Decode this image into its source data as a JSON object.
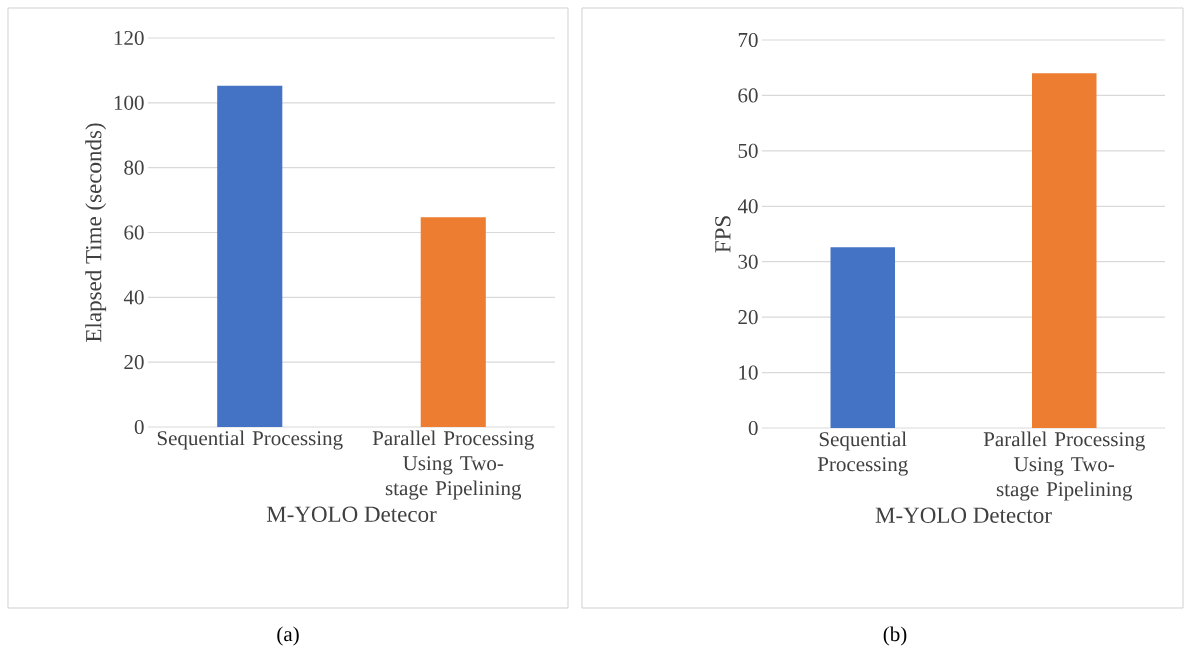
{
  "chart_data": [
    {
      "type": "bar",
      "categories": [
        "Sequential Processing",
        "Parallel Processing Using Two-stage Pipelining"
      ],
      "values": [
        105.3,
        64.7
      ],
      "colors": [
        "#4472c4",
        "#ed7d31"
      ],
      "ylim": [
        0,
        120
      ],
      "yticks": [
        0,
        20,
        40,
        60,
        80,
        100,
        120
      ],
      "ylabel": "Elapsed Time (seconds)",
      "xlabel": "M-YOLO Detecor",
      "grid": "y",
      "annotations": [
        "(a)"
      ]
    },
    {
      "type": "bar",
      "categories": [
        "Sequential Processing",
        "Parallel Processing Using Two-stage Pipelining"
      ],
      "values": [
        32.6,
        64.0
      ],
      "colors": [
        "#4472c4",
        "#ed7d31"
      ],
      "ylim": [
        0,
        70
      ],
      "yticks": [
        0,
        10,
        20,
        30,
        40,
        50,
        60,
        70
      ],
      "ylabel": "FPS",
      "xlabel": "M-YOLO Detector",
      "grid": "y",
      "annotations": [
        "(b)"
      ]
    }
  ]
}
